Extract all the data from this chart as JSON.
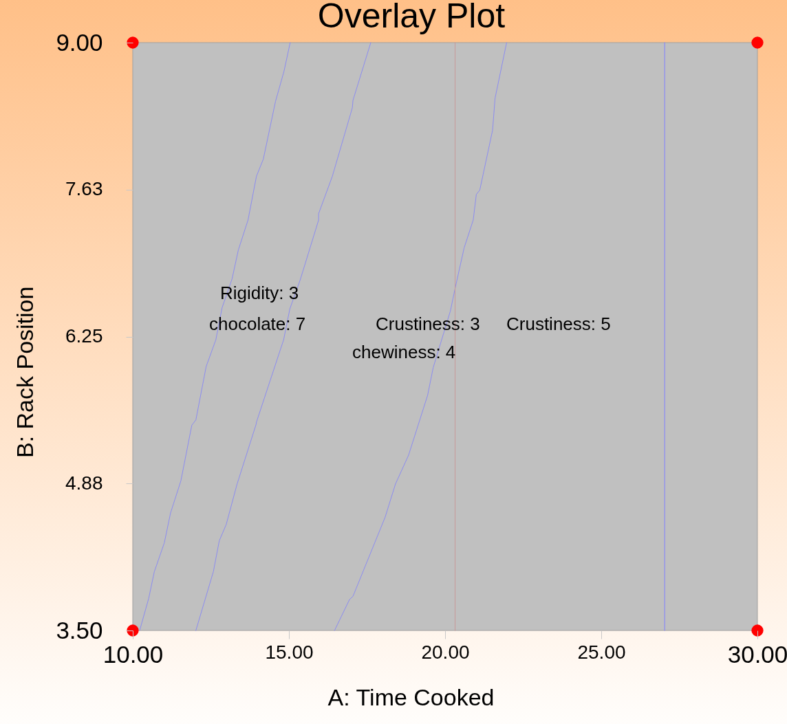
{
  "chart_data": {
    "type": "line",
    "title": "Overlay Plot",
    "xlabel": "A: Time Cooked",
    "ylabel": "B: Rack Position",
    "xlim": [
      10,
      30
    ],
    "ylim": [
      3.5,
      9
    ],
    "xticks": [
      {
        "value": 10,
        "label": "10.00"
      },
      {
        "value": 15,
        "label": "15.00"
      },
      {
        "value": 20,
        "label": "20.00"
      },
      {
        "value": 25,
        "label": "25.00"
      },
      {
        "value": 30,
        "label": "30.00"
      }
    ],
    "yticks": [
      {
        "value": 3.5,
        "label": "3.50"
      },
      {
        "value": 4.875,
        "label": "4.88"
      },
      {
        "value": 6.25,
        "label": "6.25"
      },
      {
        "value": 7.625,
        "label": "7.63"
      },
      {
        "value": 9,
        "label": "9.00"
      }
    ],
    "marker": "none",
    "line_style": "solid",
    "series": [
      {
        "color": "#8c8cf0",
        "x": [
          10.22,
          10.51,
          10.69,
          11.01,
          11.21,
          11.54,
          11.89,
          12.02,
          12.35,
          12.66,
          12.86,
          13.18,
          13.38,
          13.69,
          13.96,
          14.18,
          14.57,
          14.84,
          15.04
        ],
        "values": [
          3.5,
          3.8,
          4.05,
          4.32,
          4.6,
          4.9,
          5.42,
          5.47,
          5.97,
          6.22,
          6.52,
          6.79,
          7.06,
          7.34,
          7.75,
          7.91,
          8.45,
          8.73,
          9
        ]
      },
      {
        "color": "#8c8cf0",
        "x": [
          12.02,
          12.58,
          12.77,
          12.99,
          13.34,
          13.95,
          13.96,
          14.83,
          15.03,
          15.36,
          15.95,
          15.95,
          16.39,
          17.03,
          17.05,
          17.62
        ],
        "values": [
          3.5,
          4.05,
          4.34,
          4.49,
          4.87,
          5.43,
          5.45,
          6.22,
          6.51,
          6.78,
          7.34,
          7.4,
          7.75,
          8.39,
          8.46,
          9
        ]
      },
      {
        "color": "#8c8cf0",
        "x": [
          16.46,
          16.94,
          17.05,
          18.08,
          18.41,
          18.83,
          19.44,
          19.62,
          20.17,
          20.32,
          20.61,
          20.9,
          21.0,
          21.11,
          21.52,
          21.6,
          21.97
        ],
        "values": [
          3.5,
          3.79,
          3.82,
          4.56,
          4.87,
          5.14,
          5.7,
          5.96,
          6.49,
          6.7,
          7.08,
          7.34,
          7.58,
          7.62,
          8.18,
          8.48,
          9
        ]
      },
      {
        "color": "#c89898",
        "x": [
          20.32,
          20.32
        ],
        "values": [
          3.5,
          9
        ]
      },
      {
        "color": "#8080ff",
        "x": [
          27.03,
          27.03
        ],
        "values": [
          3.5,
          9
        ]
      },
      {
        "type": "scatter",
        "marker": "circle",
        "color": "#ff0000",
        "x": [
          10,
          10,
          30,
          30
        ],
        "values": [
          3.5,
          9,
          3.5,
          9
        ]
      }
    ],
    "bands": [
      {
        "axis": "x",
        "from": 10,
        "to": 30,
        "color": "#c0c0c0"
      }
    ],
    "annotations": [
      "Rigidity: 3",
      "chocolate: 7",
      "Crustiness: 3",
      "Crustiness: 5",
      "chewiness: 4"
    ]
  }
}
